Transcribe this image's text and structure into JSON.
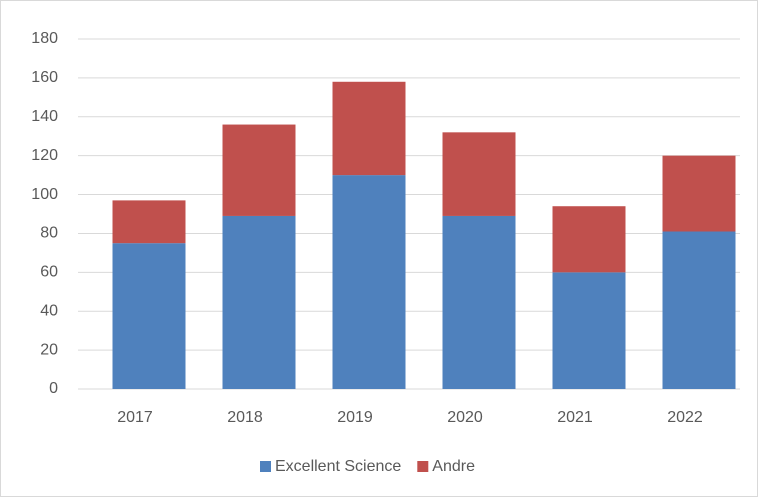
{
  "chart_data": {
    "type": "stacked_bar",
    "categories": [
      "2017",
      "2018",
      "2019",
      "2020",
      "2021",
      "2022"
    ],
    "series": [
      {
        "name": "Excellent Science",
        "color": "#4f81bd",
        "values": [
          75,
          89,
          110,
          89,
          60,
          81
        ]
      },
      {
        "name": "Andre",
        "color": "#c0504d",
        "values": [
          22,
          47,
          48,
          43,
          34,
          39
        ]
      }
    ],
    "ylim": [
      0,
      180
    ],
    "yticks": [
      0,
      20,
      40,
      60,
      80,
      100,
      120,
      140,
      160,
      180
    ],
    "grid": true,
    "legend": "bottom"
  }
}
